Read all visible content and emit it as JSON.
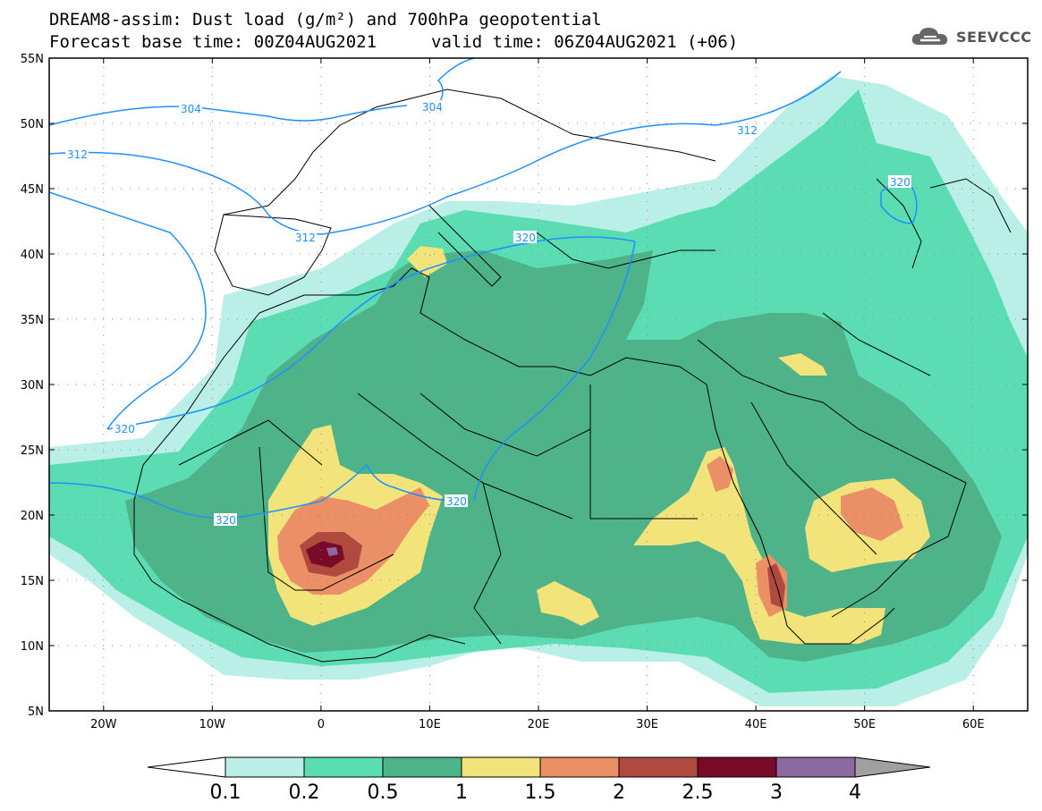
{
  "title": {
    "line1": "DREAM8-assim: Dust load (g/m²) and 700hPa geopotential",
    "line2_left": "Forecast base time: 00Z04AUG2021",
    "line2_right": "valid time: 06Z04AUG2021 (+06)"
  },
  "logo": {
    "text": "SEEVCCC",
    "icon": "cloud-icon"
  },
  "map": {
    "lat_labels": [
      "55N",
      "50N",
      "45N",
      "40N",
      "35N",
      "30N",
      "25N",
      "20N",
      "15N",
      "10N",
      "5N"
    ],
    "lon_labels": [
      "20W",
      "10W",
      "0",
      "10E",
      "20E",
      "30E",
      "40E",
      "50E",
      "60E"
    ],
    "contour_labels": [
      "304",
      "304",
      "312",
      "312",
      "312",
      "320",
      "320",
      "320",
      "320",
      "320"
    ],
    "colors": {
      "contour": "#1e90ff",
      "land_border": "#000000"
    }
  },
  "colorbar": {
    "labels": [
      "0.1",
      "0.2",
      "0.5",
      "1",
      "1.5",
      "2",
      "2.5",
      "3",
      "4"
    ],
    "colors": [
      "#b9efe6",
      "#5bdcb3",
      "#4fb38a",
      "#f2e47a",
      "#ea8f66",
      "#b04a3e",
      "#7a0a2a",
      "#8c6aa0"
    ],
    "under_color": "#ffffff",
    "over_color": "#a0a0a0"
  },
  "chart_data": {
    "type": "heatmap",
    "title": "DREAM8-assim: Dust load (g/m²) and 700hPa geopotential",
    "variable": "Dust load (g/m²)",
    "overlay": "700hPa geopotential contours",
    "contour_levels": [
      304,
      312,
      320
    ],
    "levels": [
      0.1,
      0.2,
      0.5,
      1,
      1.5,
      2,
      2.5,
      3,
      4
    ],
    "lon_range": [
      -25,
      65
    ],
    "lat_range": [
      5,
      55
    ],
    "base_time": "00Z04AUG2021",
    "valid_time": "06Z04AUG2021 (+06)"
  }
}
